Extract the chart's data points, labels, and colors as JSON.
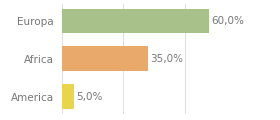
{
  "categories": [
    "America",
    "Africa",
    "Europa"
  ],
  "values": [
    5.0,
    35.0,
    60.0
  ],
  "bar_colors": [
    "#e8d44d",
    "#e8a96a",
    "#a8c08a"
  ],
  "labels": [
    "5,0%",
    "35,0%",
    "60,0%"
  ],
  "xlim": [
    0,
    75
  ],
  "background_color": "#ffffff",
  "bar_height": 0.65,
  "label_fontsize": 7.5,
  "tick_fontsize": 7.5,
  "grid_color": "#dddddd",
  "text_color": "#777777"
}
